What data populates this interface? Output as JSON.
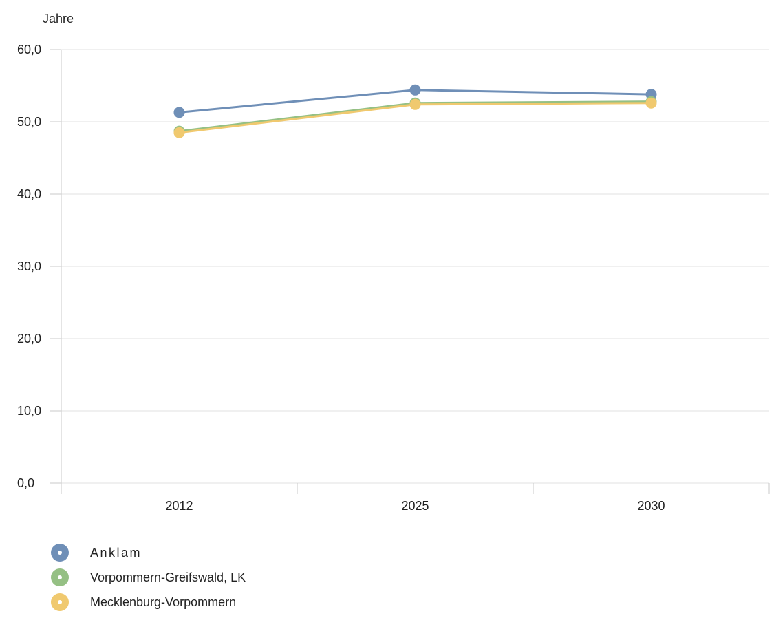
{
  "chart_data": {
    "type": "line",
    "ylabel": "Jahre",
    "categories": [
      "2012",
      "2025",
      "2030"
    ],
    "ylim": [
      0,
      60
    ],
    "yticks": [
      0,
      10,
      20,
      30,
      40,
      50,
      60
    ],
    "ytick_labels": [
      "0,0",
      "10,0",
      "20,0",
      "30,0",
      "40,0",
      "50,0",
      "60,0"
    ],
    "grid": true,
    "legend_position": "bottom-left",
    "series": [
      {
        "name": "Anklam",
        "values": [
          51.3,
          54.4,
          53.8
        ],
        "color": "#6f8fb7"
      },
      {
        "name": "Vorpommern-Greifswald, LK",
        "values": [
          48.7,
          52.6,
          52.8
        ],
        "color": "#95c084"
      },
      {
        "name": "Mecklenburg-Vorpommern",
        "values": [
          48.5,
          52.4,
          52.6
        ],
        "color": "#f0c96f"
      }
    ]
  }
}
